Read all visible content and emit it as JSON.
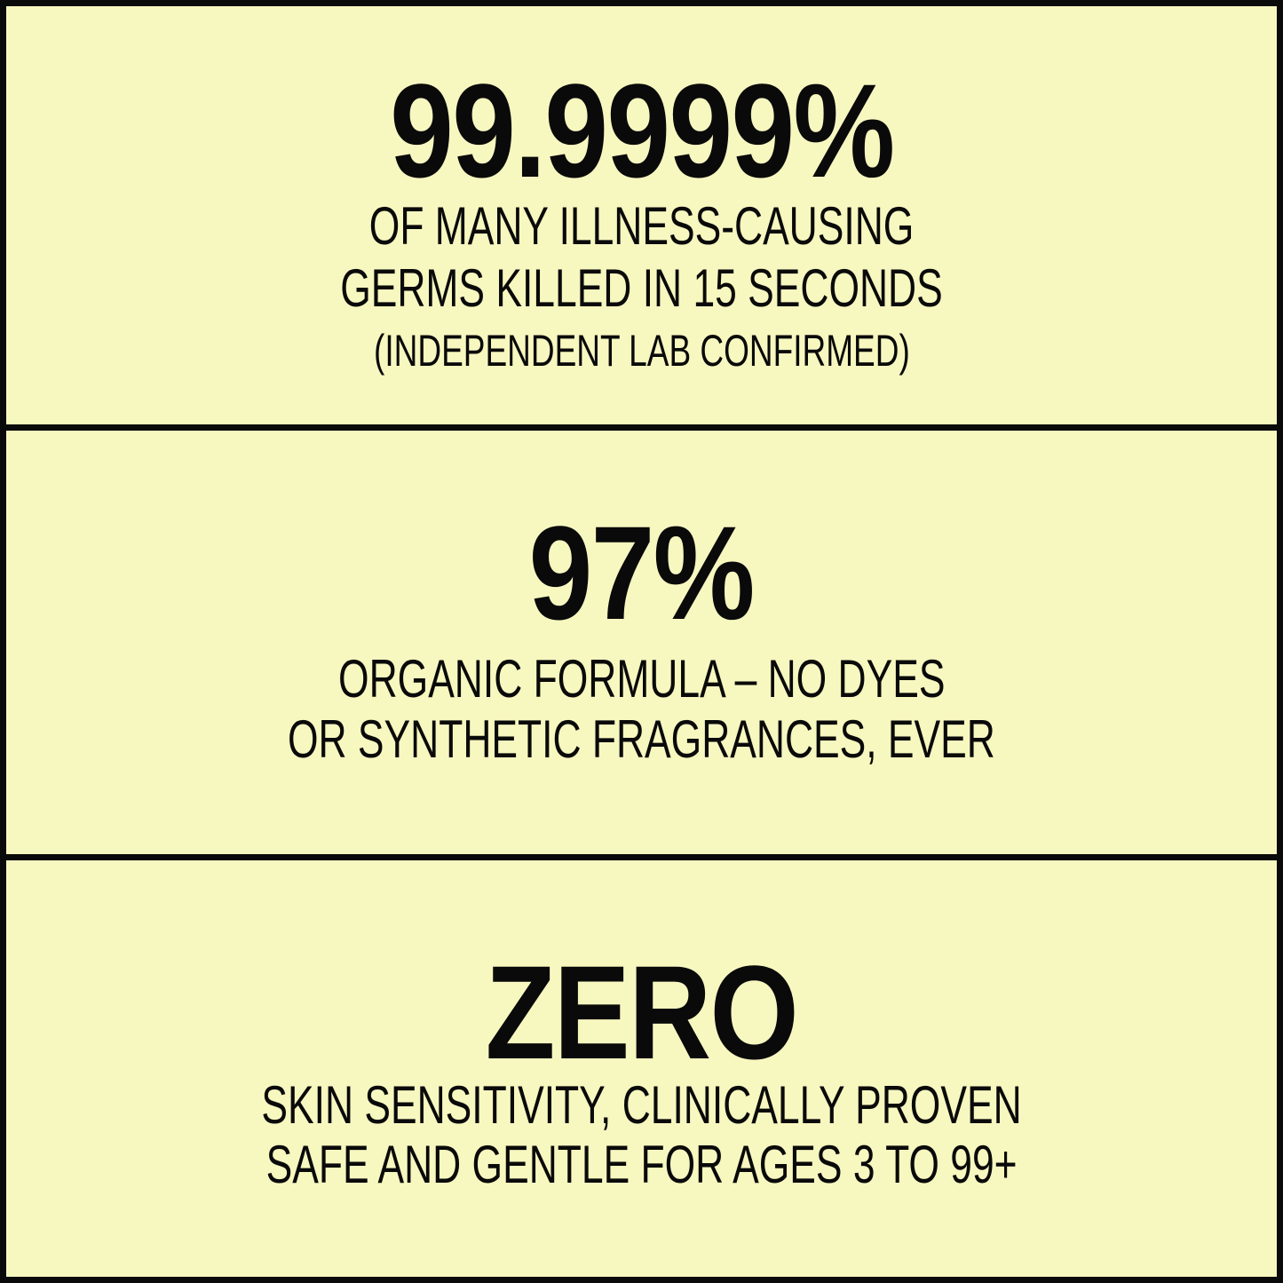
{
  "colors": {
    "background": "#f7f7c0",
    "text": "#0a0a0a",
    "border": "#0a0a0a"
  },
  "sections": [
    {
      "headline": "99.9999%",
      "lines": [
        "OF MANY ILLNESS-CAUSING",
        "GERMS KILLED IN 15 SECONDS"
      ],
      "note": "(INDEPENDENT LAB CONFIRMED)"
    },
    {
      "headline": "97%",
      "lines": [
        "ORGANIC FORMULA – NO DYES",
        "OR SYNTHETIC FRAGRANCES, EVER"
      ]
    },
    {
      "headline": "ZERO",
      "lines": [
        "SKIN SENSITIVITY, CLINICALLY PROVEN",
        "SAFE AND GENTLE FOR  AGES 3 TO 99+"
      ]
    }
  ]
}
